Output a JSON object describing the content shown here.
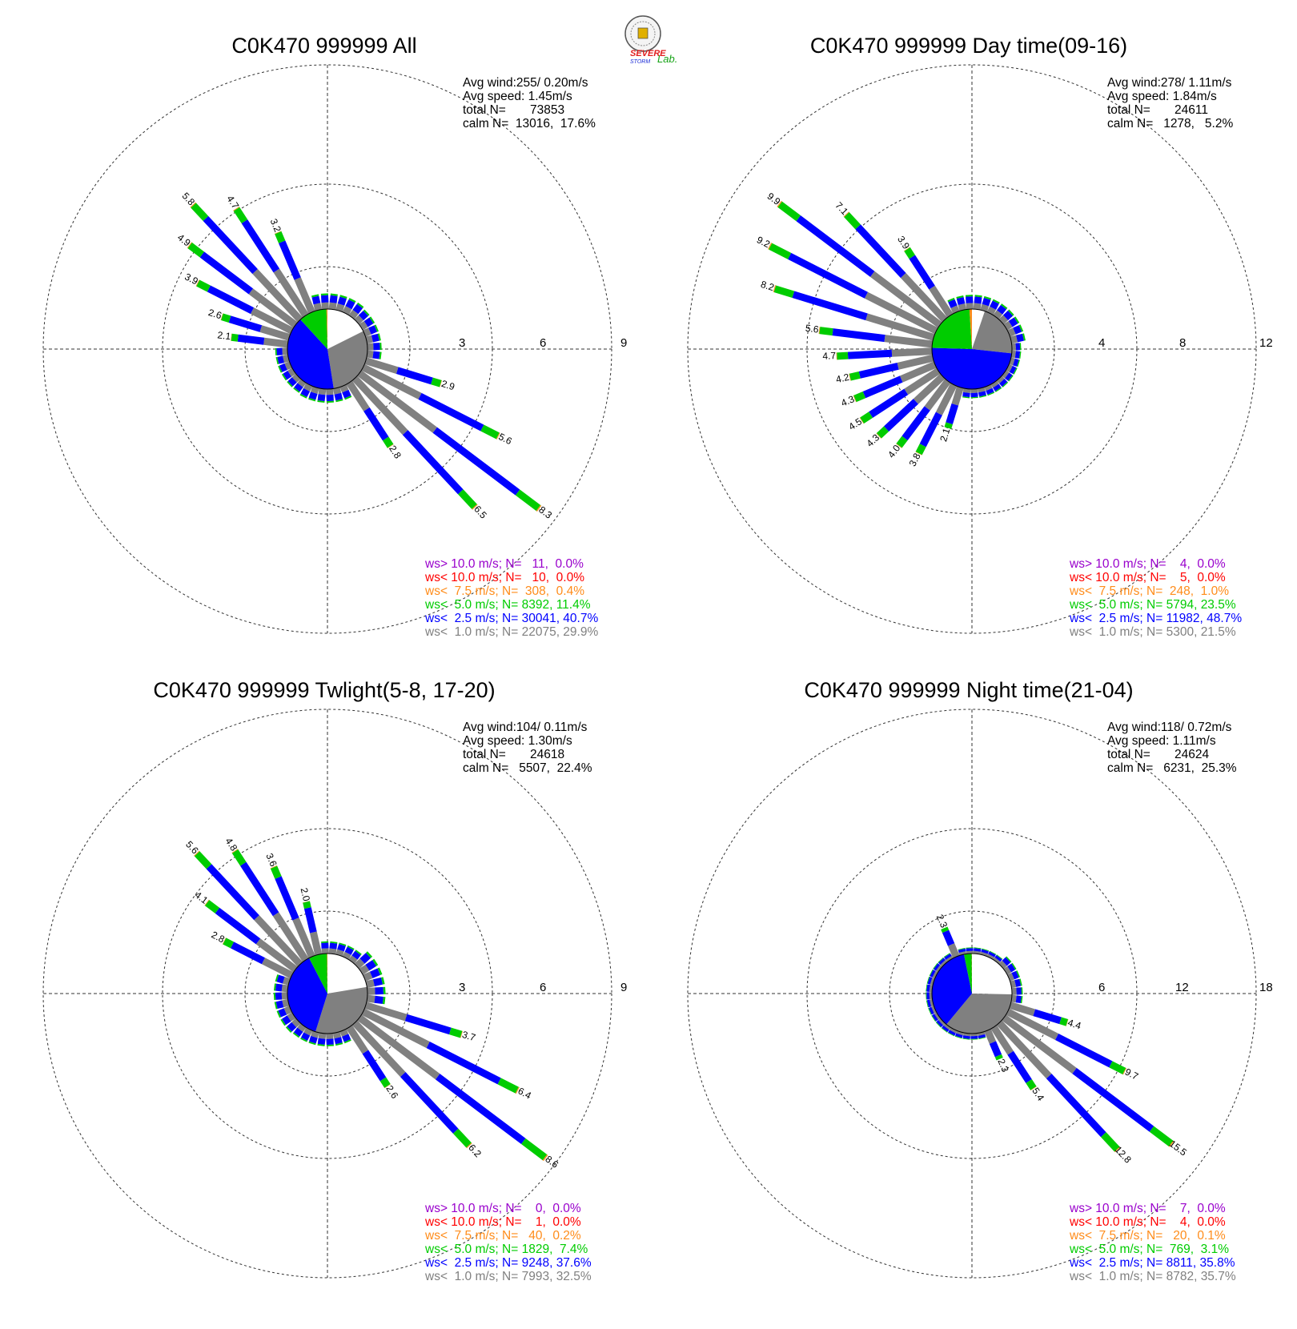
{
  "logo": {
    "lines": [
      "SEVERE",
      "STORM",
      "Lab."
    ],
    "colors": [
      "#e21d1d",
      "#1a2bd6",
      "#16a316"
    ]
  },
  "colors": {
    "gt10": "#9900cc",
    "lt10": "#ff0000",
    "lt75": "#ff8c1a",
    "lt50": "#00cc00",
    "lt25": "#0000ff",
    "lt10ms": "#808080"
  },
  "chart_data": [
    {
      "type": "windrose",
      "title": "C0K470 999999 All",
      "info": [
        "Avg wind:255/ 0.20m/s",
        "Avg speed: 1.45m/s",
        "total N=       73853",
        "calm N=  13016,  17.6%"
      ],
      "ring_labels": [
        "3",
        "6",
        "9"
      ],
      "rmax": 9,
      "calm_pie": [
        17.6,
        29.9,
        40.7,
        11.4,
        0.4
      ],
      "bar_labels": [
        {
          "dir": 107,
          "text": "2.9"
        },
        {
          "dir": 117,
          "text": "5.6"
        },
        {
          "dir": 127,
          "text": "8.3"
        },
        {
          "dir": 137,
          "text": "6.5"
        },
        {
          "dir": 147,
          "text": "2.8"
        },
        {
          "dir": 277,
          "text": "2.1"
        },
        {
          "dir": 287,
          "text": "2.6"
        },
        {
          "dir": 297,
          "text": "3.9"
        },
        {
          "dir": 307,
          "text": "4.9"
        },
        {
          "dir": 317,
          "text": "5.8"
        },
        {
          "dir": 327,
          "text": "4.7"
        },
        {
          "dir": 337,
          "text": "3.2"
        }
      ],
      "legend": [
        "ws> 10.0 m/s; N=   11,  0.0%",
        "ws< 10.0 m/s; N=   10,  0.0%",
        "ws<  7.5 m/s; N=  308,  0.4%",
        "ws<  5.0 m/s; N= 8392, 11.4%",
        "ws<  2.5 m/s; N= 30041, 40.7%",
        "ws<  1.0 m/s; N= 22075, 29.9%"
      ]
    },
    {
      "type": "windrose",
      "title": "C0K470 999999 Day time(09-16)",
      "info": [
        "Avg wind:278/ 1.11m/s",
        "Avg speed: 1.84m/s",
        "total N=       24611",
        "calm N=   1278,   5.2%"
      ],
      "ring_labels": [
        "4",
        "8",
        "12"
      ],
      "rmax": 12,
      "calm_pie": [
        5.2,
        21.5,
        48.7,
        23.5,
        1.0
      ],
      "bar_labels": [
        {
          "dir": 197,
          "text": "2.1"
        },
        {
          "dir": 207,
          "text": "3.8"
        },
        {
          "dir": 217,
          "text": "4.0"
        },
        {
          "dir": 227,
          "text": "4.3"
        },
        {
          "dir": 237,
          "text": "4.5"
        },
        {
          "dir": 247,
          "text": "4.3"
        },
        {
          "dir": 257,
          "text": "4.2"
        },
        {
          "dir": 267,
          "text": "4.7"
        },
        {
          "dir": 277,
          "text": "5.6"
        },
        {
          "dir": 287,
          "text": "8.2"
        },
        {
          "dir": 297,
          "text": "9.2"
        },
        {
          "dir": 307,
          "text": "9.9"
        },
        {
          "dir": 317,
          "text": "7.1"
        },
        {
          "dir": 327,
          "text": "3.9"
        }
      ],
      "legend": [
        "ws> 10.0 m/s; N=    4,  0.0%",
        "ws< 10.0 m/s; N=    5,  0.0%",
        "ws<  7.5 m/s; N=  248,  1.0%",
        "ws<  5.0 m/s; N= 5794, 23.5%",
        "ws<  2.5 m/s; N= 11982, 48.7%",
        "ws<  1.0 m/s; N= 5300, 21.5%"
      ]
    },
    {
      "type": "windrose",
      "title": "C0K470 999999 Twlight(5-8, 17-20)",
      "info": [
        "Avg wind:104/ 0.11m/s",
        "Avg speed: 1.30m/s",
        "total N=       24618",
        "calm N=   5507,  22.4%"
      ],
      "ring_labels": [
        "3",
        "6",
        "9"
      ],
      "rmax": 9,
      "calm_pie": [
        22.4,
        32.5,
        37.6,
        7.4,
        0.2
      ],
      "bar_labels": [
        {
          "dir": 107,
          "text": "3.7"
        },
        {
          "dir": 117,
          "text": "6.4"
        },
        {
          "dir": 127,
          "text": "8.6"
        },
        {
          "dir": 137,
          "text": "6.2"
        },
        {
          "dir": 147,
          "text": "2.6"
        },
        {
          "dir": 297,
          "text": "2.8"
        },
        {
          "dir": 307,
          "text": "4.1"
        },
        {
          "dir": 317,
          "text": "5.6"
        },
        {
          "dir": 327,
          "text": "4.8"
        },
        {
          "dir": 337,
          "text": "3.6"
        },
        {
          "dir": 347,
          "text": "2.0"
        }
      ],
      "legend": [
        "ws> 10.0 m/s; N=    0,  0.0%",
        "ws< 10.0 m/s; N=    1,  0.0%",
        "ws<  7.5 m/s; N=   40,  0.2%",
        "ws<  5.0 m/s; N= 1829,  7.4%",
        "ws<  2.5 m/s; N= 9248, 37.6%",
        "ws<  1.0 m/s; N= 7993, 32.5%"
      ]
    },
    {
      "type": "windrose",
      "title": "C0K470 999999 Night time(21-04)",
      "info": [
        "Avg wind:118/ 0.72m/s",
        "Avg speed: 1.11m/s",
        "total N=       24624",
        "calm N=   6231,  25.3%"
      ],
      "ring_labels": [
        "6",
        "12",
        "18"
      ],
      "rmax": 18,
      "calm_pie": [
        25.3,
        35.7,
        35.8,
        3.1,
        0.1
      ],
      "bar_labels": [
        {
          "dir": 107,
          "text": "4.4"
        },
        {
          "dir": 117,
          "text": "9.7"
        },
        {
          "dir": 127,
          "text": "15.5"
        },
        {
          "dir": 137,
          "text": "12.8"
        },
        {
          "dir": 147,
          "text": "5.4"
        },
        {
          "dir": 157,
          "text": "2.3"
        },
        {
          "dir": 337,
          "text": "2.3"
        }
      ],
      "legend": [
        "ws> 10.0 m/s; N=    7,  0.0%",
        "ws< 10.0 m/s; N=    4,  0.0%",
        "ws<  7.5 m/s; N=   20,  0.1%",
        "ws<  5.0 m/s; N=  769,  3.1%",
        "ws<  2.5 m/s; N= 8811, 35.8%",
        "ws<  1.0 m/s; N= 8782, 35.7%"
      ]
    }
  ]
}
